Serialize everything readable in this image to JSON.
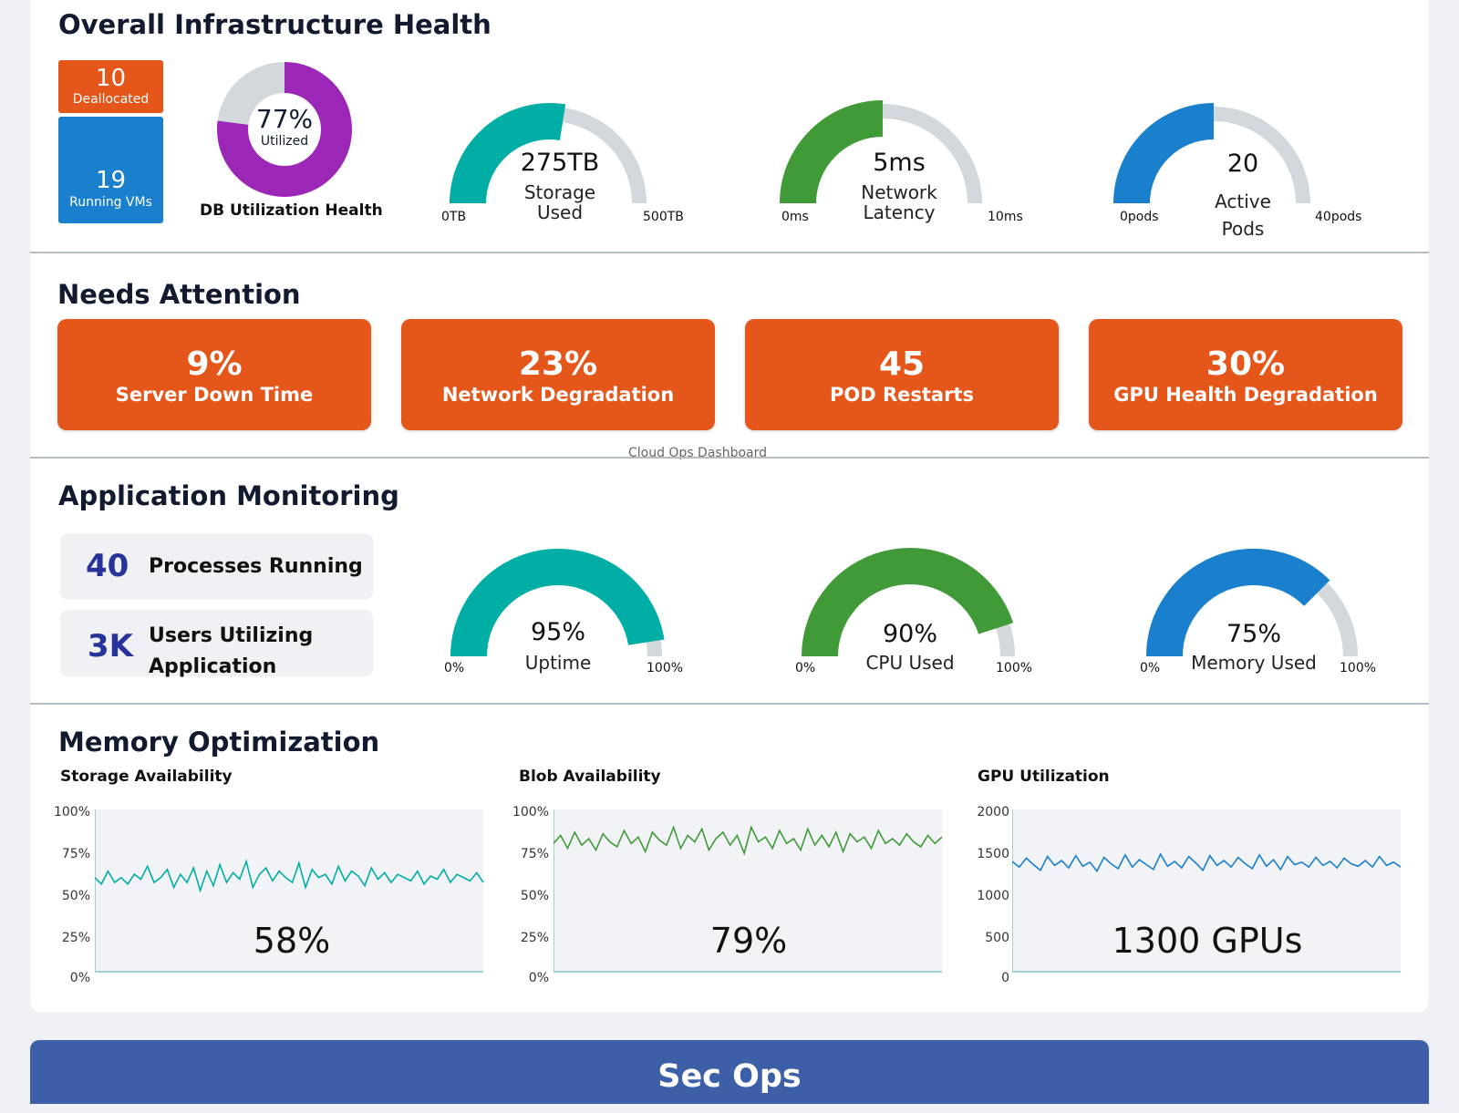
{
  "infra": {
    "title": "Overall Infrastructure Health",
    "deallocated": {
      "value": "10",
      "label": "Deallocated"
    },
    "running_vms": {
      "value": "19",
      "label": "Running VMs"
    },
    "db": {
      "value": "77%",
      "sub": "Utilized",
      "label": "DB Utilization Health",
      "fraction": 0.77
    },
    "storage": {
      "value": "275TB",
      "label_line1": "Storage",
      "label_line2": "Used",
      "min": "0TB",
      "max": "500TB",
      "fraction": 0.55
    },
    "latency": {
      "value": "5ms",
      "label_line1": "Network",
      "label_line2": "Latency",
      "min": "0ms",
      "max": "10ms",
      "fraction": 0.5
    },
    "pods": {
      "value": "20",
      "label_line1": "Active",
      "label_line2": "Pods",
      "min": "0pods",
      "max": "40pods",
      "fraction": 0.5
    }
  },
  "attention": {
    "title": "Needs Attention",
    "tiles": [
      {
        "value": "9%",
        "label": "Server Down Time"
      },
      {
        "value": "23%",
        "label": "Network Degradation"
      },
      {
        "value": "45",
        "label": "POD Restarts"
      },
      {
        "value": "30%",
        "label": "GPU Health Degradation"
      }
    ]
  },
  "caption": "Cloud Ops Dashboard",
  "app": {
    "title": "Application Monitoring",
    "processes": {
      "value": "40",
      "label": "Processes Running"
    },
    "users": {
      "value": "3K",
      "label_line1": "Users Utilizing",
      "label_line2": "Application"
    },
    "uptime": {
      "value": "95%",
      "label": "Uptime",
      "min": "0%",
      "max": "100%",
      "fraction": 0.95
    },
    "cpu": {
      "value": "90%",
      "label": "CPU Used",
      "min": "0%",
      "max": "100%",
      "fraction": 0.9
    },
    "memory": {
      "value": "75%",
      "label": "Memory Used",
      "min": "0%",
      "max": "100%",
      "fraction": 0.75
    }
  },
  "memopt": {
    "title": "Memory Optimization",
    "storage": {
      "title": "Storage Availability",
      "value": "58%",
      "ticks": [
        "100%",
        "75%",
        "50%",
        "25%",
        "0%"
      ]
    },
    "blob": {
      "title": "Blob Availability",
      "value": "79%",
      "ticks": [
        "100%",
        "75%",
        "50%",
        "25%",
        "0%"
      ]
    },
    "gpu": {
      "title": "GPU Utilization",
      "value": "1300 GPUs",
      "ticks": [
        "2000",
        "1500",
        "1000",
        "500",
        "0"
      ]
    }
  },
  "secops": "Sec Ops",
  "colors": {
    "orange": "#e5561a",
    "blue": "#1a7fcd",
    "teal": "#00aea5",
    "green": "#419a38",
    "purple": "#9c27b6",
    "grey": "#d2d8dc",
    "navy": "#27339a",
    "secops": "#3d5fa8"
  },
  "chart_data": [
    {
      "type": "area",
      "title": "Storage Availability",
      "ylim": [
        0,
        100
      ],
      "yticks": [
        "100%",
        "75%",
        "50%",
        "25%",
        "0%"
      ],
      "series": [
        {
          "values": [
            58,
            54,
            62,
            55,
            58,
            54,
            60,
            57,
            65,
            55,
            58,
            63,
            52,
            60,
            55,
            64,
            50,
            62,
            53,
            66,
            55,
            61,
            57,
            68,
            52,
            60,
            64,
            56,
            62,
            58,
            55,
            67,
            52,
            63,
            58,
            60,
            54,
            65,
            56,
            62,
            59,
            53,
            64,
            57,
            61,
            55,
            60,
            58,
            56,
            62,
            54,
            59,
            57,
            63,
            55,
            60,
            58,
            56,
            61,
            55
          ]
        }
      ]
    },
    {
      "type": "area",
      "title": "Blob Availability",
      "ylim": [
        0,
        100
      ],
      "yticks": [
        "100%",
        "75%",
        "50%",
        "25%",
        "0%"
      ],
      "series": [
        {
          "values": [
            79,
            84,
            76,
            86,
            78,
            82,
            75,
            85,
            80,
            77,
            87,
            79,
            83,
            74,
            86,
            81,
            78,
            89,
            76,
            84,
            80,
            88,
            75,
            82,
            86,
            78,
            84,
            73,
            89,
            80,
            83,
            76,
            87,
            79,
            82,
            75,
            88,
            78,
            84,
            77,
            86,
            74,
            85,
            80,
            83,
            76,
            87,
            79,
            82,
            78,
            85,
            80,
            77,
            84,
            79,
            83
          ]
        }
      ]
    },
    {
      "type": "area",
      "title": "GPU Utilization",
      "ylim": [
        0,
        2000
      ],
      "yticks": [
        "2000",
        "1500",
        "1000",
        "500",
        "0"
      ],
      "series": [
        {
          "values": [
            1360,
            1290,
            1400,
            1320,
            1250,
            1420,
            1310,
            1370,
            1280,
            1430,
            1300,
            1350,
            1240,
            1410,
            1330,
            1270,
            1440,
            1290,
            1380,
            1320,
            1260,
            1450,
            1300,
            1360,
            1280,
            1420,
            1340,
            1250,
            1430,
            1310,
            1370,
            1290,
            1410,
            1330,
            1270,
            1440,
            1300,
            1380,
            1260,
            1420,
            1320,
            1350,
            1290,
            1410,
            1310,
            1360,
            1280,
            1400,
            1330,
            1300,
            1370,
            1290,
            1420,
            1310,
            1350,
            1290
          ]
        }
      ]
    }
  ]
}
